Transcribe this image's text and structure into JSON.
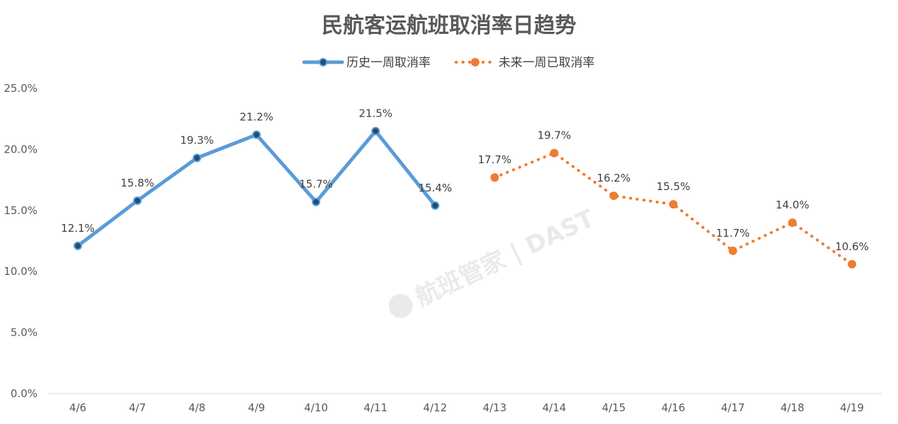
{
  "chart_data": {
    "type": "line",
    "title": "民航客运航班取消率日趋势",
    "categories": [
      "4/6",
      "4/7",
      "4/8",
      "4/9",
      "4/10",
      "4/11",
      "4/12",
      "4/13",
      "4/14",
      "4/15",
      "4/16",
      "4/17",
      "4/18",
      "4/19"
    ],
    "series": [
      {
        "name": "历史一周取消率",
        "color": "#5b9bd5",
        "line_style": "solid",
        "values": [
          12.1,
          15.8,
          19.3,
          21.2,
          15.7,
          21.5,
          15.4,
          null,
          null,
          null,
          null,
          null,
          null,
          null
        ],
        "labels": [
          "12.1%",
          "15.8%",
          "19.3%",
          "21.2%",
          "15.7%",
          "21.5%",
          "15.4%",
          null,
          null,
          null,
          null,
          null,
          null,
          null
        ]
      },
      {
        "name": "未来一周已取消率",
        "color": "#ed7d31",
        "line_style": "dotted",
        "values": [
          null,
          null,
          null,
          null,
          null,
          null,
          null,
          17.7,
          19.7,
          16.2,
          15.5,
          11.7,
          14.0,
          10.6
        ],
        "labels": [
          null,
          null,
          null,
          null,
          null,
          null,
          null,
          "17.7%",
          "19.7%",
          "16.2%",
          "15.5%",
          "11.7%",
          "14.0%",
          "10.6%"
        ]
      }
    ],
    "ylim": [
      0,
      25
    ],
    "yticks": [
      {
        "value": 0,
        "label": "0.0%"
      },
      {
        "value": 5,
        "label": "5.0%"
      },
      {
        "value": 10,
        "label": "10.0%"
      },
      {
        "value": 15,
        "label": "15.0%"
      },
      {
        "value": 20,
        "label": "20.0%"
      },
      {
        "value": 25,
        "label": "25.0%"
      }
    ],
    "xlabel": "",
    "ylabel": "",
    "grid": false,
    "legend_position": "top-center"
  },
  "watermark": {
    "text": "航班管家 | DAST"
  }
}
